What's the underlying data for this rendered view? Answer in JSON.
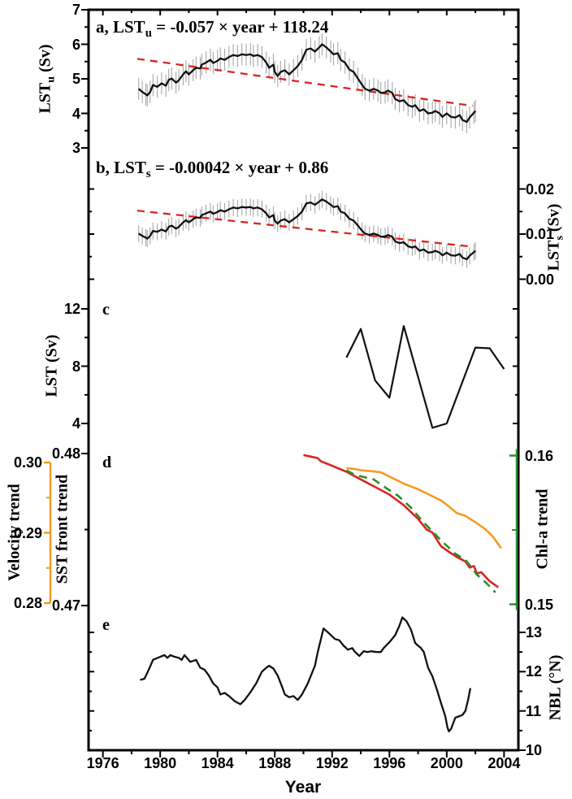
{
  "figure_background": "#ffffff",
  "colors": {
    "line_black": "#111111",
    "trend_red": "#d9251f",
    "sst_red": "#d9251f",
    "velocity_orange": "#f59b22",
    "chl_green": "#2b8f2b",
    "error_gray": "#a8a8a8",
    "frame_black": "#000000"
  },
  "x_axis": {
    "label": "Year",
    "domain": [
      1975,
      2005
    ],
    "major_ticks": [
      1976,
      1980,
      1984,
      1988,
      1992,
      1996,
      2000,
      2004
    ],
    "major_labels": [
      "1976",
      "1980",
      "1984",
      "1988",
      "1992",
      "1996",
      "2000",
      "2004"
    ],
    "minor_ticks": [
      1978,
      1982,
      1986,
      1990,
      1994,
      1998,
      2002
    ]
  },
  "chart_data": [
    {
      "type": "line",
      "id": "a",
      "title": {
        "pre": "a, LST",
        "sub": "u",
        "post": " = -0.057 × year + 118.24"
      },
      "ylabel": {
        "pre": "LST",
        "sub": "u",
        "post": " (Sv)"
      },
      "axis_side": "left",
      "y_ticks": {
        "major_values": [
          3,
          4,
          5,
          6,
          7
        ],
        "major_labels": [
          "3",
          "4",
          "5",
          "6",
          "7"
        ],
        "minor_values": [
          3.5,
          4.5,
          5.5,
          6.5
        ]
      },
      "error_half_width": 0.32,
      "trend": {
        "years": [
          1978.4,
          2001.8
        ],
        "values": [
          5.58,
          4.22
        ]
      },
      "series": {
        "years": [
          1978.5,
          1978.75,
          1979.0,
          1979.1,
          1979.3,
          1979.5,
          1979.8,
          1980.1,
          1980.4,
          1980.6,
          1980.8,
          1981.1,
          1981.3,
          1981.6,
          1981.8,
          1982.0,
          1982.3,
          1982.5,
          1982.8,
          1982.9,
          1983.2,
          1983.5,
          1983.7,
          1984.0,
          1984.2,
          1984.5,
          1984.8,
          1985.1,
          1985.4,
          1985.7,
          1986.0,
          1986.3,
          1986.5,
          1986.8,
          1987.1,
          1987.4,
          1987.6,
          1987.9,
          1988.0,
          1988.2,
          1988.4,
          1988.7,
          1989.0,
          1989.3,
          1989.6,
          1989.9,
          1990.2,
          1990.5,
          1990.8,
          1991.1,
          1991.3,
          1991.6,
          1991.9,
          1992.1,
          1992.4,
          1992.6,
          1992.9,
          1993.2,
          1993.5,
          1993.8,
          1994.1,
          1994.3,
          1994.6,
          1994.9,
          1995.2,
          1995.4,
          1995.7,
          1995.9,
          1996.2,
          1996.4,
          1996.7,
          1997.0,
          1997.3,
          1997.6,
          1997.8,
          1998.1,
          1998.4,
          1998.7,
          1999.0,
          1999.2,
          1999.5,
          1999.7,
          2000.0,
          2000.3,
          2000.6,
          2000.9,
          2001.1,
          2001.4,
          2001.6,
          2001.9,
          2002.0
        ],
        "values": [
          4.71,
          4.62,
          4.55,
          4.52,
          4.62,
          4.82,
          4.77,
          4.87,
          4.8,
          4.97,
          5.01,
          4.89,
          4.96,
          5.13,
          5.22,
          5.13,
          5.25,
          5.32,
          5.3,
          5.41,
          5.47,
          5.55,
          5.46,
          5.52,
          5.59,
          5.55,
          5.63,
          5.69,
          5.66,
          5.71,
          5.69,
          5.71,
          5.66,
          5.69,
          5.63,
          5.47,
          5.32,
          5.41,
          5.2,
          5.08,
          5.2,
          5.25,
          5.13,
          5.25,
          5.37,
          5.55,
          5.84,
          5.88,
          5.79,
          5.91,
          6.0,
          5.91,
          5.79,
          5.71,
          5.74,
          5.55,
          5.47,
          5.27,
          5.2,
          5.01,
          4.82,
          4.71,
          4.66,
          4.71,
          4.66,
          4.59,
          4.61,
          4.66,
          4.59,
          4.42,
          4.35,
          4.38,
          4.24,
          4.19,
          4.24,
          4.07,
          4.12,
          4.0,
          4.02,
          4.07,
          4.0,
          3.9,
          4.0,
          3.9,
          3.88,
          3.95,
          3.81,
          3.75,
          3.88,
          4.02,
          4.07
        ]
      }
    },
    {
      "type": "line",
      "id": "b",
      "title": {
        "pre": "b, LST",
        "sub": "s",
        "post": " = -0.00042  × year + 0.86"
      },
      "ylabel": {
        "pre": "LST",
        "sub": "s",
        "post": " (Sv)"
      },
      "axis_side": "right",
      "y_ticks": {
        "major_values": [
          0,
          0.01,
          0.02
        ],
        "major_labels": [
          "0.00",
          "0.01",
          "0.02"
        ],
        "minor_values": [
          0.005,
          0.015
        ]
      },
      "error_half_width": 0.0019,
      "trend": {
        "years": [
          1978.4,
          2001.8
        ],
        "values": [
          0.0152,
          0.0072
        ]
      },
      "series": {
        "years": [
          1978.5,
          1978.75,
          1979.0,
          1979.1,
          1979.3,
          1979.5,
          1979.8,
          1980.1,
          1980.4,
          1980.6,
          1980.8,
          1981.1,
          1981.3,
          1981.6,
          1981.8,
          1982.0,
          1982.3,
          1982.5,
          1982.8,
          1982.9,
          1983.2,
          1983.5,
          1983.7,
          1984.0,
          1984.2,
          1984.5,
          1984.8,
          1985.1,
          1985.4,
          1985.7,
          1986.0,
          1986.3,
          1986.5,
          1986.8,
          1987.1,
          1987.4,
          1987.6,
          1987.9,
          1988.0,
          1988.2,
          1988.4,
          1988.7,
          1989.0,
          1989.3,
          1989.6,
          1989.9,
          1990.2,
          1990.5,
          1990.8,
          1991.1,
          1991.3,
          1991.6,
          1991.9,
          1992.1,
          1992.4,
          1992.6,
          1992.9,
          1993.2,
          1993.5,
          1993.8,
          1994.1,
          1994.3,
          1994.6,
          1994.9,
          1995.2,
          1995.4,
          1995.7,
          1995.9,
          1996.2,
          1996.4,
          1996.7,
          1997.0,
          1997.3,
          1997.6,
          1997.8,
          1998.1,
          1998.4,
          1998.7,
          1999.0,
          1999.2,
          1999.5,
          1999.7,
          2000.0,
          2000.3,
          2000.6,
          2000.9,
          2001.1,
          2001.4,
          2001.6,
          2001.9,
          2002.0
        ],
        "values": [
          0.0101,
          0.0096,
          0.0092,
          0.009,
          0.0096,
          0.0107,
          0.0105,
          0.011,
          0.0106,
          0.0116,
          0.0119,
          0.0112,
          0.0116,
          0.0126,
          0.0131,
          0.0126,
          0.0133,
          0.0137,
          0.0136,
          0.0142,
          0.0146,
          0.015,
          0.0145,
          0.0149,
          0.0153,
          0.015,
          0.0155,
          0.0159,
          0.0157,
          0.016,
          0.0159,
          0.016,
          0.0157,
          0.0159,
          0.0155,
          0.0146,
          0.0137,
          0.0142,
          0.013,
          0.0123,
          0.013,
          0.0133,
          0.0126,
          0.0133,
          0.014,
          0.015,
          0.0168,
          0.017,
          0.0165,
          0.0172,
          0.0177,
          0.0172,
          0.0165,
          0.016,
          0.0162,
          0.015,
          0.0146,
          0.0134,
          0.013,
          0.0119,
          0.0107,
          0.0101,
          0.0098,
          0.0101,
          0.0098,
          0.0094,
          0.0095,
          0.0098,
          0.0094,
          0.0084,
          0.008,
          0.0082,
          0.0073,
          0.007,
          0.0073,
          0.0063,
          0.0066,
          0.0059,
          0.006,
          0.0063,
          0.0059,
          0.0053,
          0.0059,
          0.0053,
          0.0052,
          0.0056,
          0.0048,
          0.0044,
          0.0052,
          0.006,
          0.0063
        ]
      }
    },
    {
      "type": "line",
      "id": "c",
      "letter": "c",
      "ylabel": {
        "pre": "LST (Sv)",
        "sub": "",
        "post": ""
      },
      "axis_side": "left",
      "y_ticks": {
        "major_values": [
          4,
          8,
          12
        ],
        "major_labels": [
          "4",
          "8",
          "12"
        ],
        "minor_values": [
          6,
          10
        ]
      },
      "series": {
        "years": [
          1993,
          1994,
          1995,
          1996,
          1997,
          1999,
          2000,
          2002,
          2003,
          2004
        ],
        "values": [
          8.6,
          10.6,
          7.0,
          5.8,
          10.8,
          3.7,
          4.0,
          9.3,
          9.25,
          7.8
        ]
      }
    },
    {
      "type": "line",
      "id": "d",
      "letter": "d",
      "axes": {
        "velocity": {
          "label": "Velocity trend",
          "major_values": [
            0.28,
            0.29,
            0.3
          ],
          "major_labels": [
            "0.28",
            "0.29",
            "0.30"
          ],
          "minor_values": [
            0.285,
            0.295
          ]
        },
        "sst_front": {
          "label": "SST front trend",
          "major_values": [
            0.47,
            0.48
          ],
          "major_labels": [
            "0.47",
            "0.48"
          ],
          "minor_values": [
            0.475
          ]
        },
        "chl": {
          "label": "Chl-a trend",
          "major_values": [
            0.15,
            0.16
          ],
          "major_labels": [
            "0.15",
            "0.16"
          ],
          "minor_values": [
            0.155
          ]
        }
      },
      "series_sst_front": {
        "years": [
          1990.0,
          1990.5,
          1991.0,
          1991.2,
          1992.0,
          1993.0,
          1994.0,
          1995.0,
          1996.0,
          1997.0,
          1998.0,
          1998.6,
          1999.0,
          1999.6,
          2000.2,
          2000.7,
          2001.3,
          2001.6,
          2001.9,
          2002.1,
          2002.4,
          2003.0,
          2003.6
        ],
        "values": [
          0.4799,
          0.4798,
          0.4797,
          0.4795,
          0.4792,
          0.4788,
          0.4783,
          0.4778,
          0.4773,
          0.4766,
          0.4757,
          0.475,
          0.4748,
          0.4739,
          0.4735,
          0.4732,
          0.4729,
          0.4725,
          0.4726,
          0.4721,
          0.4722,
          0.4716,
          0.4712
        ]
      },
      "series_velocity": {
        "years": [
          1993.0,
          1993.5,
          1994.0,
          1995.0,
          1995.4,
          1996.0,
          1997.0,
          1998.0,
          1998.5,
          1999.0,
          1999.6,
          2000.0,
          2000.7,
          2001.3,
          2002.0,
          2002.7,
          2003.2,
          2003.8
        ],
        "values": [
          0.2992,
          0.2991,
          0.2989,
          0.2987,
          0.2986,
          0.298,
          0.297,
          0.2962,
          0.2957,
          0.2952,
          0.2946,
          0.294,
          0.2928,
          0.2924,
          0.2915,
          0.2905,
          0.2895,
          0.2878
        ]
      },
      "series_chl": {
        "years": [
          1993.0,
          1993.6,
          1994.9,
          1995.8,
          1996.6,
          1997.5,
          1998.3,
          1999.0,
          1999.6,
          2000.6,
          2001.3,
          2002.1,
          2002.8,
          2003.4
        ],
        "values": [
          0.159,
          0.1587,
          0.1584,
          0.1578,
          0.1573,
          0.1565,
          0.1556,
          0.1549,
          0.1543,
          0.1534,
          0.153,
          0.152,
          0.1514,
          0.1508
        ]
      }
    },
    {
      "type": "line",
      "id": "e",
      "letter": "e",
      "ylabel": {
        "pre": "NBL (°N)",
        "sub": "",
        "post": ""
      },
      "axis_side": "right",
      "y_ticks": {
        "major_values": [
          10,
          11,
          12,
          13
        ],
        "major_labels": [
          "10",
          "11",
          "12",
          "13"
        ],
        "minor_values": [
          10.5,
          11.5,
          12.5
        ]
      },
      "series": {
        "years": [
          1978.6,
          1978.9,
          1979.2,
          1979.5,
          1980.0,
          1980.3,
          1980.5,
          1980.7,
          1981.0,
          1981.3,
          1981.5,
          1981.7,
          1982.1,
          1982.5,
          1982.8,
          1983.1,
          1983.4,
          1983.7,
          1984.0,
          1984.2,
          1984.5,
          1984.8,
          1985.2,
          1985.6,
          1985.9,
          1986.3,
          1986.7,
          1987.1,
          1987.4,
          1987.6,
          1987.9,
          1988.2,
          1988.5,
          1988.7,
          1989.0,
          1989.3,
          1989.6,
          1989.9,
          1990.3,
          1990.8,
          1991.0,
          1991.4,
          1991.8,
          1992.2,
          1992.5,
          1992.8,
          1993.1,
          1993.4,
          1993.6,
          1993.9,
          1994.2,
          1994.5,
          1994.7,
          1995.1,
          1995.4,
          1995.6,
          1996.0,
          1996.4,
          1996.7,
          1996.9,
          1997.2,
          1997.5,
          1997.8,
          1998.0,
          1998.2,
          1998.4,
          1998.7,
          1999.0,
          1999.3,
          1999.6,
          1999.9,
          2000.05,
          2000.15,
          2000.3,
          2000.6,
          2000.9,
          2001.1,
          2001.3,
          2001.5,
          2001.65
        ],
        "values": [
          11.79,
          11.82,
          12.05,
          12.3,
          12.38,
          12.42,
          12.35,
          12.42,
          12.38,
          12.35,
          12.3,
          12.42,
          12.25,
          12.3,
          12.1,
          12.05,
          11.9,
          11.7,
          11.6,
          11.42,
          11.46,
          11.38,
          11.25,
          11.17,
          11.28,
          11.48,
          11.7,
          12.0,
          12.1,
          12.15,
          12.08,
          11.9,
          11.62,
          11.42,
          11.35,
          11.38,
          11.28,
          11.42,
          11.7,
          12.15,
          12.5,
          13.1,
          12.97,
          12.83,
          12.8,
          12.66,
          12.56,
          12.6,
          12.5,
          12.4,
          12.52,
          12.5,
          12.52,
          12.5,
          12.5,
          12.6,
          12.75,
          12.93,
          13.17,
          13.38,
          13.28,
          13.07,
          12.73,
          12.66,
          12.6,
          12.5,
          12.1,
          11.88,
          11.56,
          11.2,
          10.86,
          10.58,
          10.48,
          10.54,
          10.83,
          10.87,
          10.9,
          11.0,
          11.3,
          11.58
        ]
      }
    }
  ]
}
